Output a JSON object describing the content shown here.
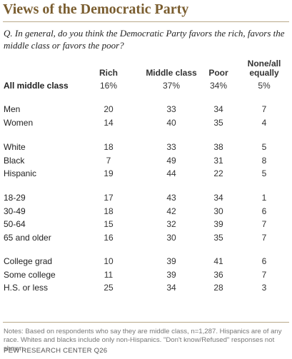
{
  "title": "Views of the Democratic Party",
  "question": "Q. In general, do you think the Democratic Party favors the rich, favors the middle class or favors the poor?",
  "headers": {
    "rich": "Rich",
    "middle": "Middle class",
    "poor": "Poor",
    "none_line1": "None/all",
    "none_line2": "equally"
  },
  "rows": [
    {
      "label": "All middle class",
      "rich": "16%",
      "middle": "37%",
      "poor": "34%",
      "none": "5%"
    },
    {
      "label": "Men",
      "rich": "20",
      "middle": "33",
      "poor": "34",
      "none": "7"
    },
    {
      "label": "Women",
      "rich": "14",
      "middle": "40",
      "poor": "35",
      "none": "4"
    },
    {
      "label": "White",
      "rich": "18",
      "middle": "33",
      "poor": "38",
      "none": "5"
    },
    {
      "label": "Black",
      "rich": "7",
      "middle": "49",
      "poor": "31",
      "none": "8"
    },
    {
      "label": "Hispanic",
      "rich": "19",
      "middle": "44",
      "poor": "22",
      "none": "5"
    },
    {
      "label": "18-29",
      "rich": "17",
      "middle": "43",
      "poor": "34",
      "none": "1"
    },
    {
      "label": "30-49",
      "rich": "18",
      "middle": "42",
      "poor": "30",
      "none": "6"
    },
    {
      "label": "50-64",
      "rich": "15",
      "middle": "32",
      "poor": "39",
      "none": "7"
    },
    {
      "label": "65 and older",
      "rich": "16",
      "middle": "30",
      "poor": "35",
      "none": "7"
    },
    {
      "label": "College grad",
      "rich": "10",
      "middle": "39",
      "poor": "41",
      "none": "6"
    },
    {
      "label": "Some college",
      "rich": "11",
      "middle": "39",
      "poor": "36",
      "none": "7"
    },
    {
      "label": "H.S. or less",
      "rich": "25",
      "middle": "34",
      "poor": "28",
      "none": "3"
    }
  ],
  "notes": "Notes: Based on respondents who say they are middle class, n=1,287. Hispanics are of any race. Whites and blacks include only non-Hispanics. \"Don't know/Refused\" responses not shown.",
  "source": "PEW RESEARCH CENTER Q26"
}
